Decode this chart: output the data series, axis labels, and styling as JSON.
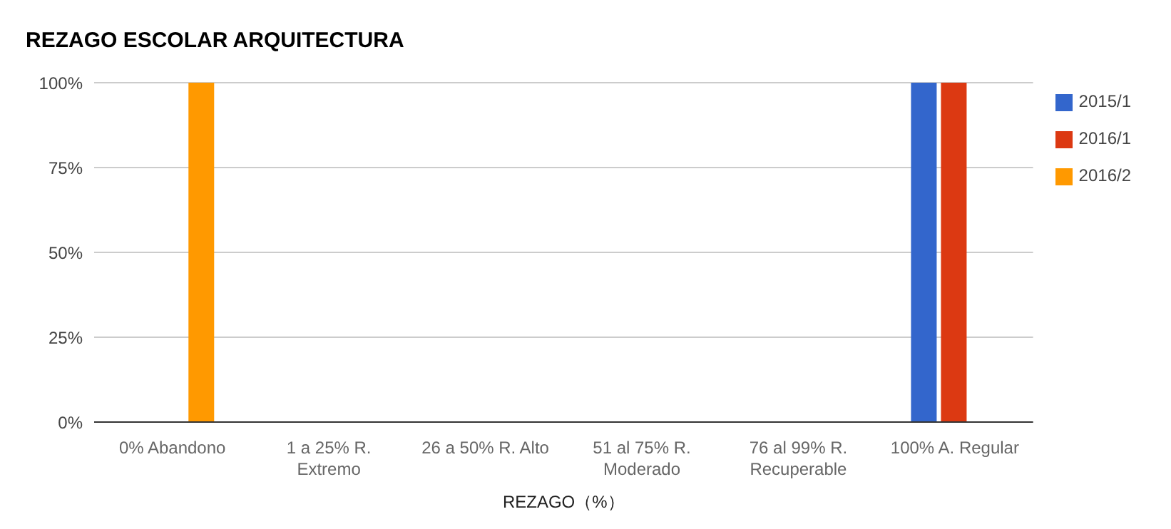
{
  "chart_data": {
    "type": "bar",
    "title": "REZAGO ESCOLAR ARQUITECTURA",
    "xlabel": "REZAGO（%）",
    "categories": [
      "0% Abandono",
      "1 a 25% R. Extremo",
      "26 a 50% R. Alto",
      "51 al 75% R. Moderado",
      "76 al 99% R. Recuperable",
      "100% A. Regular"
    ],
    "series": [
      {
        "name": "2015/1",
        "color": "#3366cc",
        "values": [
          0,
          0,
          0,
          0,
          0,
          100
        ]
      },
      {
        "name": "2016/1",
        "color": "#dc3912",
        "values": [
          0,
          0,
          0,
          0,
          0,
          100
        ]
      },
      {
        "name": "2016/2",
        "color": "#ff9900",
        "values": [
          100,
          0,
          0,
          0,
          0,
          0
        ]
      }
    ],
    "ylim": [
      0,
      100
    ],
    "yticks": [
      {
        "value": 0,
        "label": "0%"
      },
      {
        "value": 25,
        "label": "25%"
      },
      {
        "value": 50,
        "label": "50%"
      },
      {
        "value": 75,
        "label": "75%"
      },
      {
        "value": 100,
        "label": "100%"
      }
    ],
    "grid": "y",
    "legend": "top right"
  }
}
